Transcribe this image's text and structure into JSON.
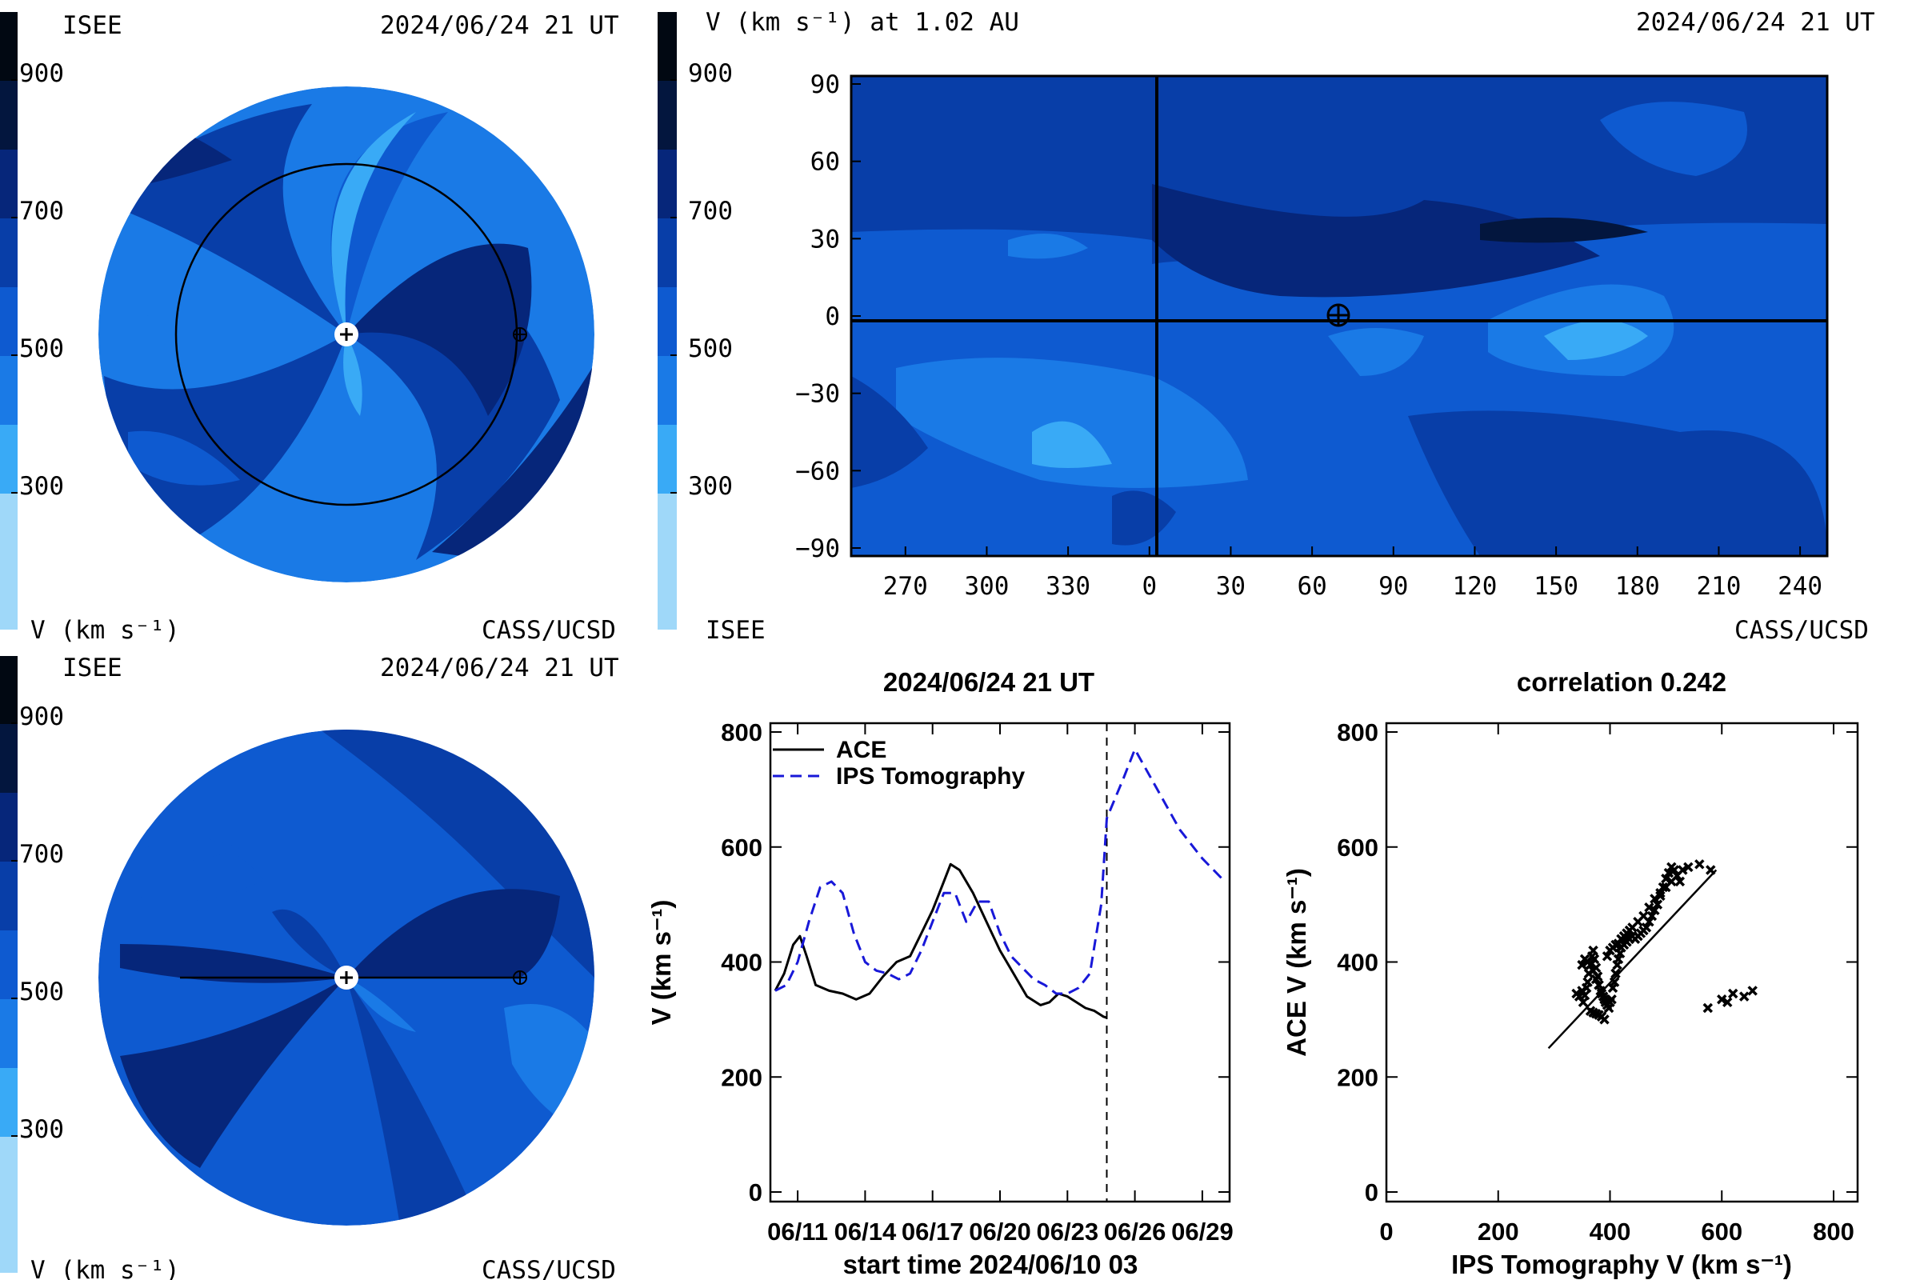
{
  "colors": {
    "scale": [
      "#9fd8f9",
      "#39aaf6",
      "#1a7ae6",
      "#0e5ad0",
      "#083ea8",
      "#06267a",
      "#03163e",
      "#010812"
    ],
    "background": "#ffffff",
    "ace": "#000000",
    "ips": "#1818d8"
  },
  "top_left": {
    "left_label": "ISEE",
    "date": "2024/06/24 21 UT",
    "unit": "V (km s⁻¹)",
    "credit": "CASS/UCSD",
    "colorbar_ticks": [
      "900",
      "700",
      "500",
      "300"
    ]
  },
  "top_right": {
    "title": "V (km s⁻¹) at 1.02 AU",
    "date": "2024/06/24 21 UT",
    "colorbar_ticks": [
      "900",
      "700",
      "500",
      "300"
    ],
    "bottom_left": "ISEE",
    "credit": "CASS/UCSD"
  },
  "bottom_left": {
    "left_label": "ISEE",
    "date": "2024/06/24 21 UT",
    "unit": "V (km s⁻¹)",
    "credit": "CASS/UCSD",
    "colorbar_ticks": [
      "900",
      "700",
      "500",
      "300"
    ]
  },
  "chart_data": [
    {
      "type": "heatmap",
      "title": "V (km s⁻¹) at 1.02 AU",
      "x_ticks": [
        "270",
        "300",
        "330",
        "0",
        "30",
        "60",
        "90",
        "120",
        "150",
        "180",
        "210",
        "240"
      ],
      "y_ticks": [
        "90",
        "60",
        "30",
        "0",
        "−30",
        "−60",
        "−90"
      ],
      "xlim": [
        245,
        250
      ],
      "ylim": [
        -90,
        90
      ],
      "markers": [
        {
          "name": "earth",
          "x": 65,
          "y": 2
        }
      ]
    },
    {
      "type": "line",
      "title": "2024/06/24 21 UT",
      "xlabel": "start time 2024/06/10 03",
      "ylabel": "V (km s⁻¹)",
      "x_ticks": [
        "06/11",
        "06/14",
        "06/17",
        "06/20",
        "06/23",
        "06/26",
        "06/29"
      ],
      "y_ticks": [
        "800",
        "600",
        "400",
        "200",
        "0"
      ],
      "xlim": [
        0,
        20
      ],
      "ylim": [
        0,
        800
      ],
      "now_x": 14.75,
      "series": [
        {
          "name": "ACE",
          "style": "solid",
          "x": [
            0,
            0.4,
            0.8,
            1.1,
            1.4,
            1.8,
            2.4,
            3.0,
            3.6,
            4.2,
            4.8,
            5.4,
            6.0,
            6.5,
            7.0,
            7.5,
            7.8,
            8.2,
            8.8,
            9.4,
            10.0,
            10.6,
            11.2,
            11.8,
            12.2,
            12.6,
            13.0,
            13.4,
            13.8,
            14.2,
            14.6,
            14.75
          ],
          "values": [
            350,
            380,
            430,
            445,
            410,
            360,
            350,
            345,
            335,
            345,
            375,
            400,
            410,
            450,
            490,
            540,
            570,
            560,
            520,
            470,
            420,
            380,
            340,
            325,
            330,
            345,
            340,
            330,
            320,
            315,
            305,
            303
          ]
        },
        {
          "name": "IPS Tomography",
          "style": "dashed",
          "x": [
            0,
            0.5,
            1.0,
            1.5,
            2.0,
            2.5,
            3.0,
            3.5,
            4.0,
            4.5,
            5.0,
            5.5,
            6.0,
            6.5,
            7.0,
            7.5,
            8.0,
            8.5,
            9.0,
            9.5,
            10.0,
            10.5,
            11.0,
            11.5,
            12.0,
            12.5,
            13.0,
            13.5,
            14.0,
            14.5,
            14.75,
            15.5,
            16.0,
            17.0,
            18.0,
            19.0,
            20.0
          ],
          "values": [
            350,
            360,
            400,
            470,
            530,
            540,
            520,
            450,
            400,
            385,
            380,
            370,
            380,
            420,
            470,
            520,
            520,
            470,
            505,
            505,
            450,
            410,
            390,
            370,
            360,
            345,
            345,
            355,
            380,
            500,
            650,
            720,
            770,
            700,
            630,
            580,
            540
          ]
        }
      ]
    },
    {
      "type": "scatter",
      "title": "correlation 0.242",
      "xlabel": "IPS Tomography V (km s⁻¹)",
      "ylabel": "ACE V (km s⁻¹)",
      "x_ticks": [
        "0",
        "200",
        "400",
        "600",
        "800"
      ],
      "y_ticks": [
        "800",
        "600",
        "400",
        "200",
        "0"
      ],
      "xlim": [
        0,
        800
      ],
      "ylim": [
        0,
        800
      ],
      "fit_line": {
        "x": [
          290,
          590
        ],
        "y": [
          250,
          560
        ]
      },
      "x": [
        340,
        345,
        350,
        352,
        355,
        358,
        360,
        362,
        365,
        368,
        370,
        372,
        375,
        378,
        380,
        383,
        385,
        388,
        390,
        392,
        395,
        398,
        400,
        403,
        405,
        408,
        410,
        413,
        415,
        418,
        420,
        425,
        430,
        435,
        440,
        445,
        450,
        455,
        460,
        465,
        470,
        475,
        480,
        485,
        490,
        495,
        500,
        505,
        510,
        515,
        520,
        525,
        395,
        400,
        405,
        410,
        415,
        420,
        425,
        430,
        435,
        440,
        450,
        460,
        470,
        480,
        490,
        500,
        510,
        520,
        530,
        540,
        560,
        580,
        610,
        640,
        655,
        620,
        600,
        575,
        365,
        370,
        375,
        380,
        385,
        390,
        380,
        375,
        370,
        365,
        360,
        355,
        350
      ],
      "values": [
        345,
        340,
        350,
        330,
        342,
        355,
        365,
        380,
        395,
        410,
        420,
        405,
        390,
        375,
        360,
        350,
        345,
        340,
        335,
        330,
        325,
        320,
        330,
        335,
        355,
        365,
        380,
        395,
        405,
        415,
        425,
        430,
        435,
        440,
        445,
        440,
        445,
        450,
        455,
        460,
        470,
        480,
        490,
        500,
        515,
        530,
        545,
        555,
        565,
        560,
        550,
        540,
        410,
        420,
        425,
        430,
        432,
        440,
        445,
        450,
        455,
        460,
        470,
        480,
        495,
        510,
        520,
        530,
        540,
        550,
        560,
        565,
        570,
        560,
        330,
        340,
        350,
        345,
        335,
        320,
        315,
        312,
        310,
        308,
        305,
        300,
        360,
        370,
        385,
        395,
        400,
        405,
        395
      ]
    }
  ]
}
